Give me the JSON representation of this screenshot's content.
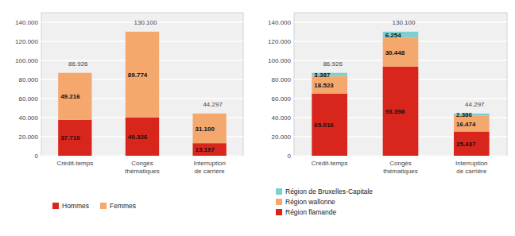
{
  "chart_data": [
    {
      "type": "bar",
      "stacked": true,
      "grid": true,
      "legend": "bottom",
      "data_labels": true,
      "categories": [
        "Crédit-temps",
        "Congés\nthématiques",
        "Interruption\nde carrière"
      ],
      "series": [
        {
          "name": "Hommes",
          "color": "#d9261c",
          "values": [
            37710,
            40326,
            13197
          ],
          "value_labels": [
            "37.710",
            "40.326",
            "13.197"
          ]
        },
        {
          "name": "Femmes",
          "color": "#f5a86e",
          "values": [
            49216,
            89774,
            31100
          ],
          "value_labels": [
            "49.216",
            "89.774",
            "31.100"
          ]
        }
      ],
      "totals": [
        86926,
        130100,
        44297
      ],
      "total_labels": [
        "86.926",
        "130.100",
        "44.297"
      ],
      "ylim": [
        0,
        150000
      ],
      "yticks": [
        0,
        {
          "value": 20000,
          "label": "20.000"
        },
        {
          "value": 40000,
          "label": "40.000"
        },
        {
          "value": 60000,
          "label": "60.000"
        },
        {
          "value": 80000,
          "label": "80.000"
        },
        {
          "value": 100000,
          "label": "100.000"
        },
        {
          "value": 120000,
          "label": "120.000"
        },
        {
          "value": 140000,
          "label": "140.000"
        }
      ]
    },
    {
      "type": "bar",
      "stacked": true,
      "grid": true,
      "legend": "bottom",
      "data_labels": true,
      "categories": [
        "Crédit-temps",
        "Congés\nthématiques",
        "Interruption\nde carrière"
      ],
      "series": [
        {
          "name": "Région flamande",
          "color": "#d9261c",
          "values": [
            65016,
            93398,
            25437
          ],
          "value_labels": [
            "65.016",
            "93.398",
            "25.437"
          ]
        },
        {
          "name": "Région wallonne",
          "color": "#f5a86e",
          "values": [
            18523,
            30448,
            16474
          ],
          "value_labels": [
            "18.523",
            "30.448",
            "16.474"
          ]
        },
        {
          "name": "Région de Bruxelles-Capitale",
          "color": "#7ecfcf",
          "values": [
            3387,
            6254,
            2386
          ],
          "value_labels": [
            "3.387",
            "6.254",
            "2.386"
          ]
        }
      ],
      "totals": [
        86926,
        130100,
        44297
      ],
      "total_labels": [
        "86.926",
        "130.100",
        "44.297"
      ],
      "ylim": [
        0,
        150000
      ],
      "yticks": [
        0,
        {
          "value": 20000,
          "label": "20.000"
        },
        {
          "value": 40000,
          "label": "40.000"
        },
        {
          "value": 60000,
          "label": "60.000"
        },
        {
          "value": 80000,
          "label": "80.000"
        },
        {
          "value": 100000,
          "label": "100.000"
        },
        {
          "value": 120000,
          "label": "120.000"
        },
        {
          "value": 140000,
          "label": "140.000"
        }
      ]
    }
  ]
}
